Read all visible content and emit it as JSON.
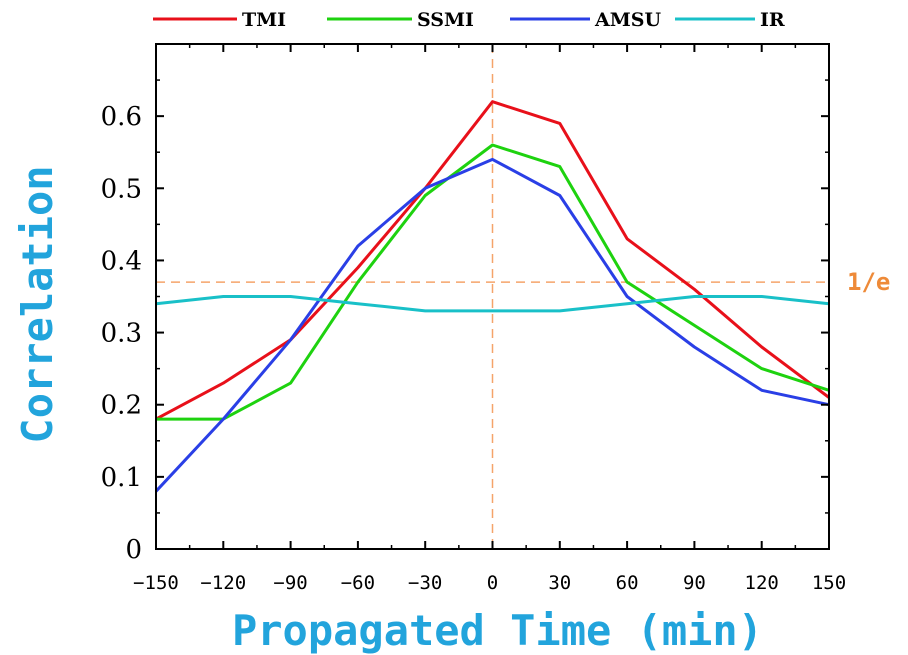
{
  "chart_data": {
    "type": "line",
    "title": "",
    "xlabel": "Propagated Time (min)",
    "ylabel": "Correlation",
    "x": [
      -150,
      -120,
      -90,
      -60,
      -30,
      0,
      30,
      60,
      90,
      120,
      150
    ],
    "xticks": [
      -150,
      -120,
      -90,
      -60,
      -30,
      0,
      30,
      60,
      90,
      120,
      150
    ],
    "yticks": [
      0,
      0.1,
      0.2,
      0.3,
      0.4,
      0.5,
      0.6
    ],
    "xlim": [
      -150,
      150
    ],
    "ylim": [
      0,
      0.7
    ],
    "grid": false,
    "legend_placement": "top",
    "series": [
      {
        "name": "TMI",
        "color": "#e8101a",
        "values": [
          0.18,
          0.23,
          0.29,
          0.39,
          0.5,
          0.62,
          0.59,
          0.43,
          0.36,
          0.28,
          0.21
        ]
      },
      {
        "name": "SSMI",
        "color": "#1ed20f",
        "values": [
          0.18,
          0.18,
          0.23,
          0.37,
          0.49,
          0.56,
          0.53,
          0.37,
          0.31,
          0.25,
          0.22
        ]
      },
      {
        "name": "AMSU",
        "color": "#2a3fe6",
        "values": [
          0.08,
          0.18,
          0.29,
          0.42,
          0.5,
          0.54,
          0.49,
          0.35,
          0.28,
          0.22,
          0.2
        ]
      },
      {
        "name": "IR",
        "color": "#19c0c8",
        "values": [
          0.34,
          0.35,
          0.35,
          0.34,
          0.33,
          0.33,
          0.33,
          0.34,
          0.35,
          0.35,
          0.34
        ]
      }
    ],
    "reference_lines": [
      {
        "orientation": "horizontal",
        "value": 0.37,
        "label": "1/e",
        "color": "#f5a46a"
      },
      {
        "orientation": "vertical",
        "value": 0,
        "color": "#f5a46a"
      }
    ],
    "colors": {
      "axis_title": "#22a4dc",
      "ref_label": "#ee8a38"
    }
  }
}
